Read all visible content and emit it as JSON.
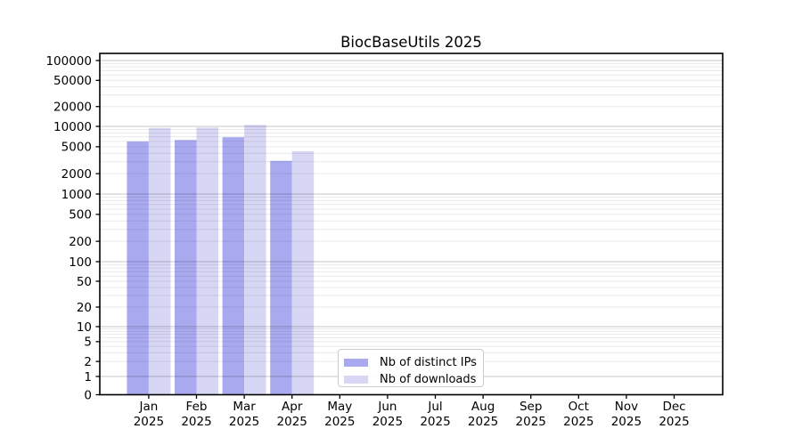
{
  "chart_data": {
    "type": "bar",
    "title": "BiocBaseUtils 2025",
    "categories": [
      "Jan",
      "Feb",
      "Mar",
      "Apr",
      "May",
      "Jun",
      "Jul",
      "Aug",
      "Sep",
      "Oct",
      "Nov",
      "Dec"
    ],
    "category_year": "2025",
    "series": [
      {
        "name": "Nb of distinct IPs",
        "color": "#a9a9f0",
        "values": [
          6000,
          6300,
          6900,
          3100,
          null,
          null,
          null,
          null,
          null,
          null,
          null,
          null
        ]
      },
      {
        "name": "Nb of downloads",
        "color": "#d7d7f5",
        "values": [
          9500,
          9600,
          10500,
          4300,
          null,
          null,
          null,
          null,
          null,
          null,
          null,
          null
        ]
      }
    ],
    "y_ticks": [
      0,
      1,
      2,
      5,
      10,
      20,
      50,
      100,
      200,
      500,
      1000,
      2000,
      5000,
      10000,
      20000,
      50000,
      100000
    ],
    "ylim": [
      0,
      100000
    ],
    "y_scale": "log-like with zero baseline",
    "grid": "horizontal major and log-minor gridlines",
    "legend_position": "inside-bottom-center"
  },
  "colors": {
    "distinct_ips": "#a9a9f0",
    "downloads": "#d7d7f5",
    "axis": "#000000",
    "major_grid": "#c8c8c8",
    "minor_grid": "#e9e9e9",
    "legend_border": "#cccccc",
    "background": "#ffffff"
  }
}
